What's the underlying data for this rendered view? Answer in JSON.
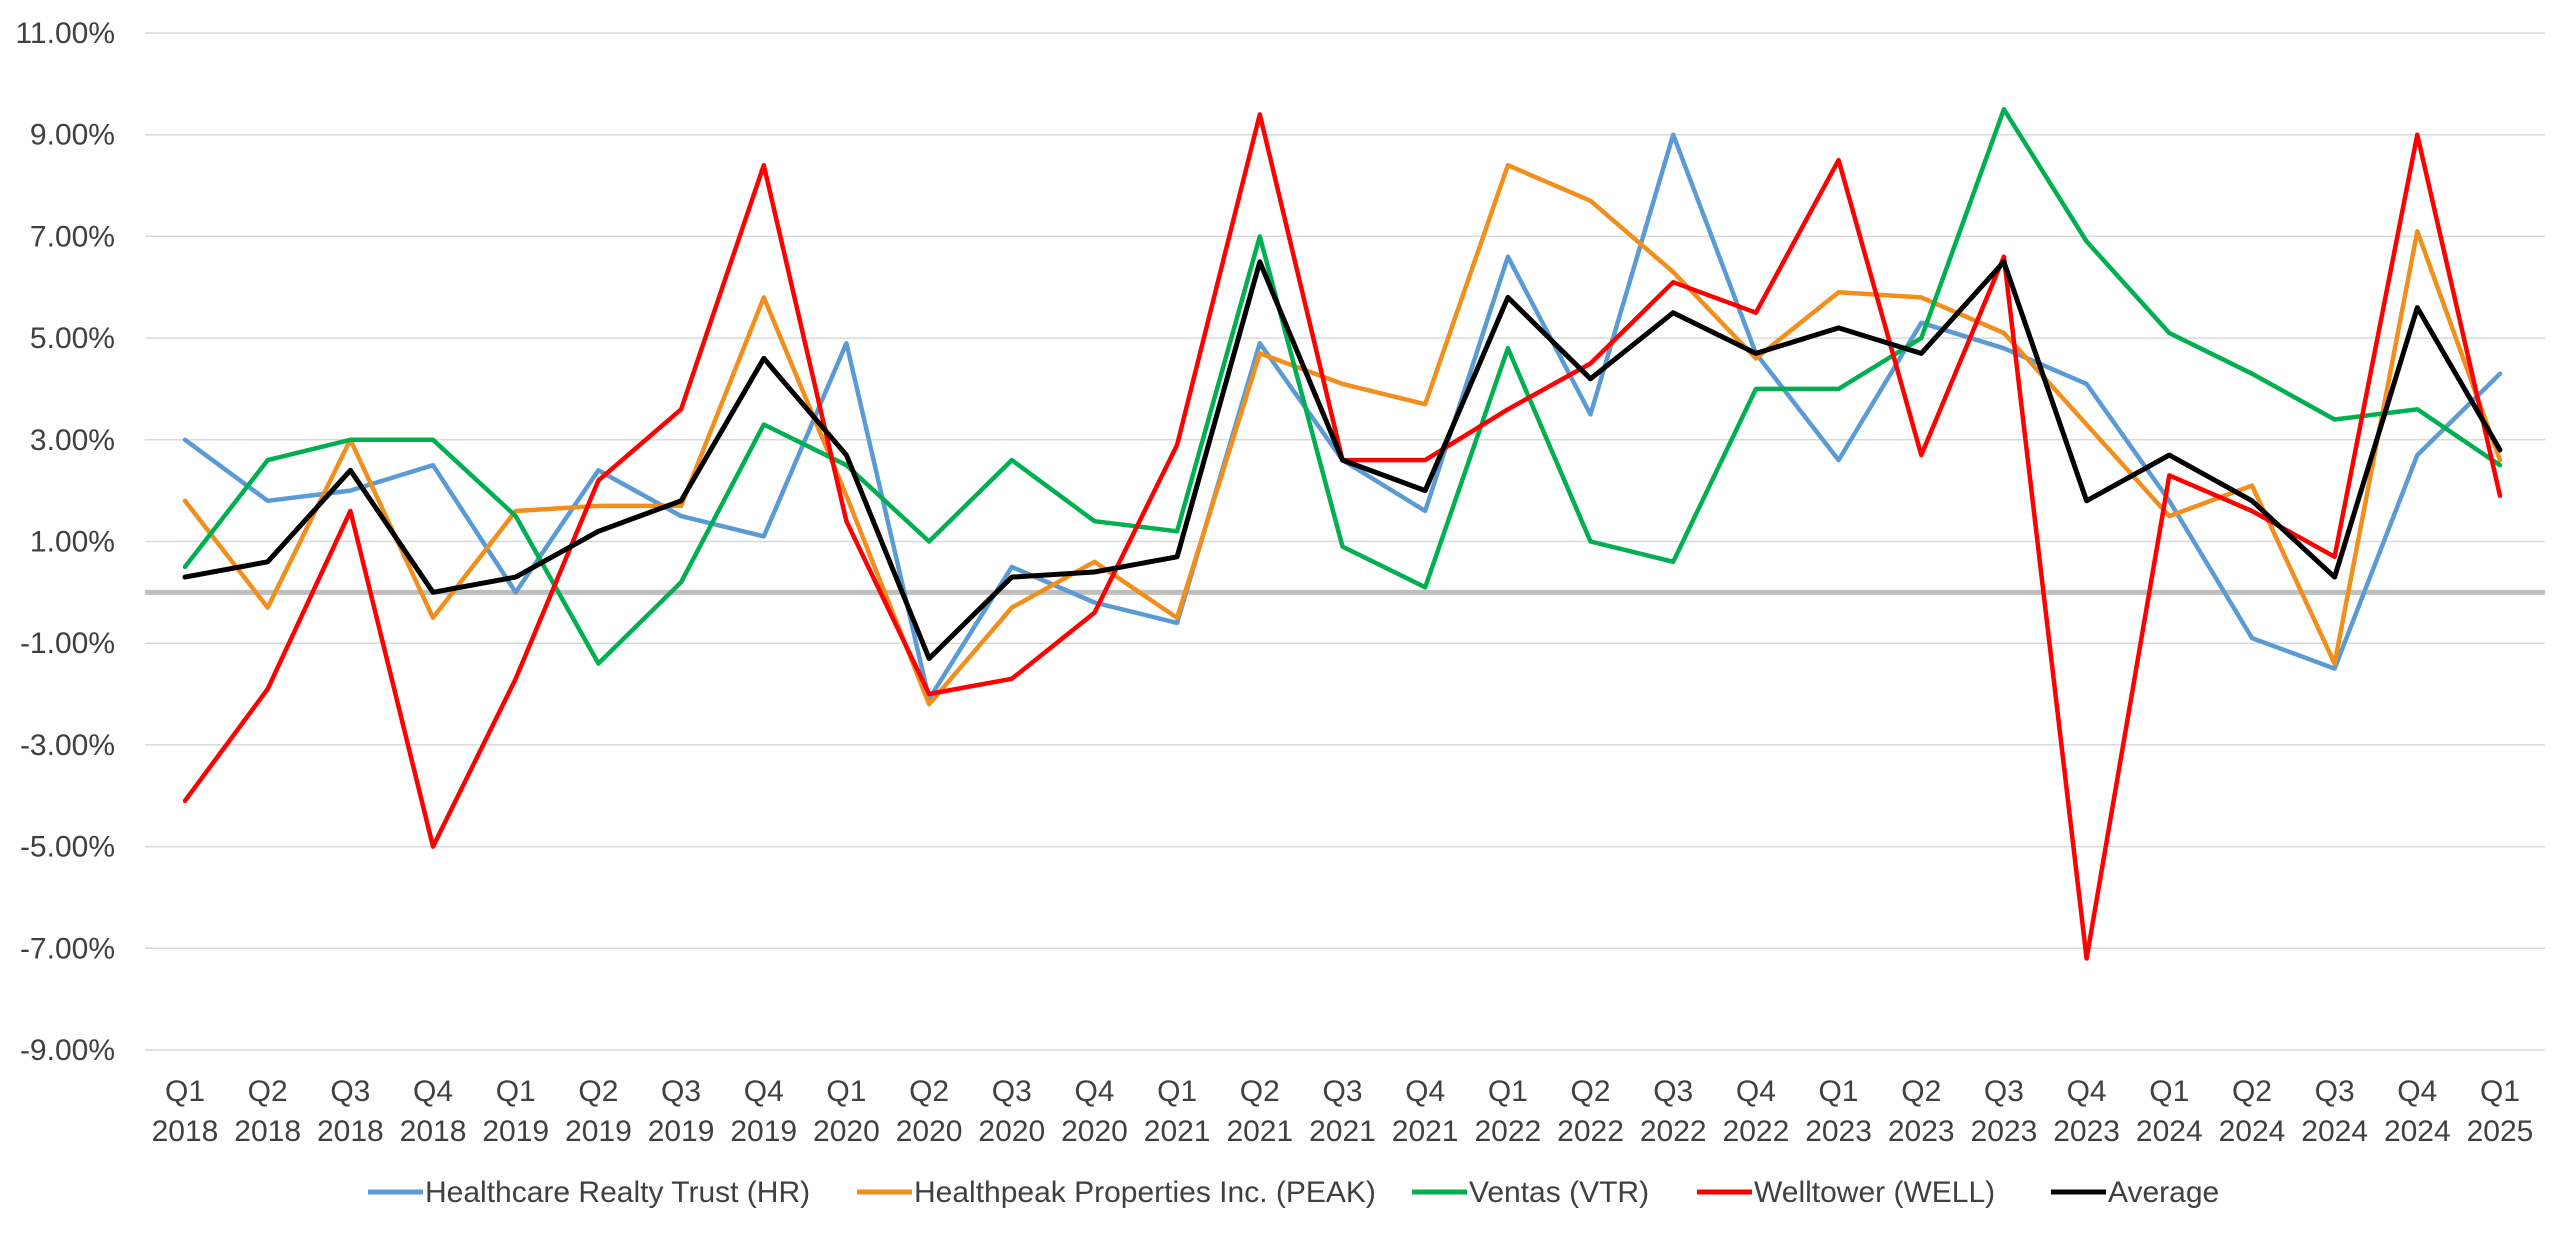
{
  "chart_data": {
    "type": "line",
    "title": "",
    "xlabel": "",
    "ylabel": "",
    "ylim": [
      -9,
      11
    ],
    "yticks": [
      -9,
      -7,
      -5,
      -3,
      -1,
      1,
      3,
      5,
      7,
      9,
      11
    ],
    "ytick_labels": [
      "-9.00%",
      "-7.00%",
      "-5.00%",
      "-3.00%",
      "-1.00%",
      "1.00%",
      "3.00%",
      "5.00%",
      "7.00%",
      "9.00%",
      "11.00%"
    ],
    "grid": true,
    "zero_line": true,
    "legend_position": "bottom",
    "categories": [
      [
        "Q1",
        "2018"
      ],
      [
        "Q2",
        "2018"
      ],
      [
        "Q3",
        "2018"
      ],
      [
        "Q4",
        "2018"
      ],
      [
        "Q1",
        "2019"
      ],
      [
        "Q2",
        "2019"
      ],
      [
        "Q3",
        "2019"
      ],
      [
        "Q4",
        "2019"
      ],
      [
        "Q1",
        "2020"
      ],
      [
        "Q2",
        "2020"
      ],
      [
        "Q3",
        "2020"
      ],
      [
        "Q4",
        "2020"
      ],
      [
        "Q1",
        "2021"
      ],
      [
        "Q2",
        "2021"
      ],
      [
        "Q3",
        "2021"
      ],
      [
        "Q4",
        "2021"
      ],
      [
        "Q1",
        "2022"
      ],
      [
        "Q2",
        "2022"
      ],
      [
        "Q3",
        "2022"
      ],
      [
        "Q4",
        "2022"
      ],
      [
        "Q1",
        "2023"
      ],
      [
        "Q2",
        "2023"
      ],
      [
        "Q3",
        "2023"
      ],
      [
        "Q4",
        "2023"
      ],
      [
        "Q1",
        "2024"
      ],
      [
        "Q2",
        "2024"
      ],
      [
        "Q3",
        "2024"
      ],
      [
        "Q4",
        "2024"
      ],
      [
        "Q1",
        "2025"
      ]
    ],
    "series": [
      {
        "name": "Healthcare Realty Trust (HR)",
        "color": "#5B9BD5",
        "values": [
          3.0,
          1.8,
          2.0,
          2.5,
          0.0,
          2.4,
          1.5,
          1.1,
          4.9,
          -2.1,
          0.5,
          -0.2,
          -0.6,
          4.9,
          2.6,
          1.6,
          6.6,
          3.5,
          9.0,
          4.7,
          2.6,
          5.3,
          4.8,
          4.1,
          1.8,
          -0.9,
          -1.5,
          2.7,
          4.3
        ]
      },
      {
        "name": "Healthpeak Properties Inc. (PEAK)",
        "color": "#F28E1C",
        "values": [
          1.8,
          -0.3,
          3.0,
          -0.5,
          1.6,
          1.7,
          1.7,
          5.8,
          1.9,
          -2.2,
          -0.3,
          0.6,
          -0.5,
          4.7,
          4.1,
          3.7,
          8.4,
          7.7,
          6.3,
          4.6,
          5.9,
          5.8,
          5.1,
          3.3,
          1.5,
          2.1,
          -1.4,
          7.1,
          2.6
        ]
      },
      {
        "name": "Ventas (VTR)",
        "color": "#00B050",
        "values": [
          0.5,
          2.6,
          3.0,
          3.0,
          1.5,
          -1.4,
          0.2,
          3.3,
          2.5,
          1.0,
          2.6,
          1.4,
          1.2,
          7.0,
          0.9,
          0.1,
          4.8,
          1.0,
          0.6,
          4.0,
          4.0,
          5.0,
          9.5,
          6.9,
          5.1,
          4.3,
          3.4,
          3.6,
          2.5
        ]
      },
      {
        "name": "Welltower (WELL)",
        "color": "#FF0000",
        "values": [
          -4.1,
          -1.9,
          1.6,
          -5.0,
          -1.7,
          2.2,
          3.6,
          8.4,
          1.4,
          -2.0,
          -1.7,
          -0.4,
          2.9,
          9.4,
          2.6,
          2.6,
          3.6,
          4.5,
          6.1,
          5.5,
          8.5,
          2.7,
          6.6,
          -7.2,
          2.3,
          1.6,
          0.7,
          9.0,
          1.9
        ]
      },
      {
        "name": "Average",
        "color": "#000000",
        "values": [
          0.3,
          0.6,
          2.4,
          0.0,
          0.3,
          1.2,
          1.8,
          4.6,
          2.7,
          -1.3,
          0.3,
          0.4,
          0.7,
          6.5,
          2.6,
          2.0,
          5.8,
          4.2,
          5.5,
          4.7,
          5.2,
          4.7,
          6.5,
          1.8,
          2.7,
          1.8,
          0.3,
          5.6,
          2.8
        ]
      }
    ]
  }
}
